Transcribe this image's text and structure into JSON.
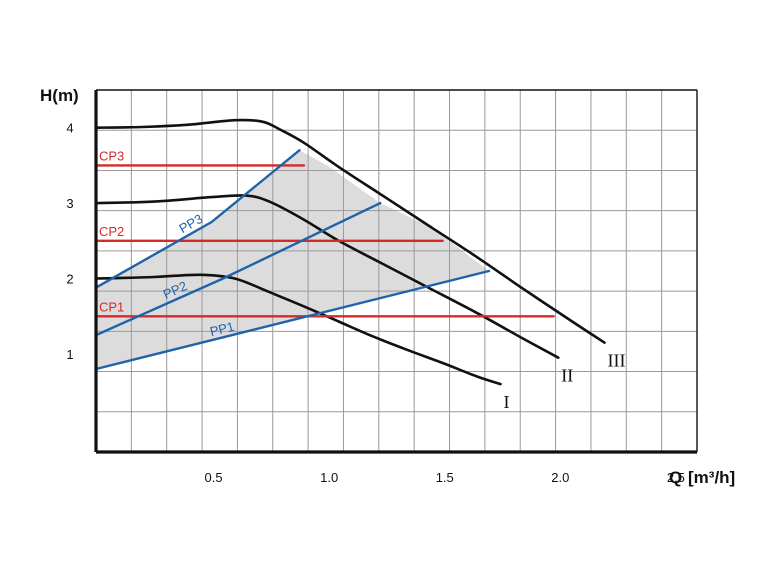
{
  "chart_data": {
    "type": "line",
    "title": "",
    "xlabel": "Q[m³/h]",
    "ylabel": "H(m)",
    "x_axis_symbol": "Q",
    "x_axis_unit": "[m³/h]",
    "xlim": [
      0,
      2.6
    ],
    "ylim": [
      -0.3,
      4.5
    ],
    "x_ticks": [
      0.5,
      1.0,
      1.5,
      2.0,
      2.5
    ],
    "x_tick_labels": [
      "0.5",
      "1.0",
      "1.5",
      "2.0",
      "2.5"
    ],
    "y_ticks": [
      1,
      2,
      3,
      4
    ],
    "y_tick_labels": [
      "1",
      "2",
      "3",
      "4"
    ],
    "grid": true,
    "colors": {
      "max_curve": "#111111",
      "constant_pressure": "#d42a2a",
      "proportional_pressure": "#1f63a8",
      "operating_area": "#dcdcdc"
    },
    "series": [
      {
        "name": "I",
        "kind": "max_curve",
        "x": [
          0.0,
          0.25,
          0.45,
          0.6,
          0.75,
          0.9,
          1.05,
          1.2,
          1.35,
          1.5,
          1.65,
          1.75
        ],
        "y": [
          2.0,
          2.02,
          2.05,
          2.0,
          1.82,
          1.63,
          1.43,
          1.23,
          1.05,
          0.88,
          0.7,
          0.6
        ]
      },
      {
        "name": "II",
        "kind": "max_curve",
        "x": [
          0.0,
          0.25,
          0.5,
          0.65,
          0.75,
          0.9,
          1.05,
          1.25,
          1.45,
          1.65,
          1.85,
          2.0
        ],
        "y": [
          3.0,
          3.02,
          3.08,
          3.1,
          3.02,
          2.78,
          2.5,
          2.18,
          1.86,
          1.54,
          1.2,
          0.95
        ]
      },
      {
        "name": "III",
        "kind": "max_curve",
        "x": [
          0.0,
          0.2,
          0.4,
          0.6,
          0.72,
          0.8,
          0.9,
          1.05,
          1.25,
          1.45,
          1.65,
          1.85,
          2.05,
          2.2
        ],
        "y": [
          4.0,
          4.01,
          4.04,
          4.1,
          4.08,
          3.97,
          3.8,
          3.48,
          3.08,
          2.68,
          2.28,
          1.86,
          1.45,
          1.15
        ]
      },
      {
        "name": "CP1",
        "kind": "constant_pressure",
        "x": [
          0.0,
          1.98
        ],
        "y": [
          1.5,
          1.5
        ]
      },
      {
        "name": "CP2",
        "kind": "constant_pressure",
        "x": [
          0.0,
          1.5
        ],
        "y": [
          2.5,
          2.5
        ]
      },
      {
        "name": "CP3",
        "kind": "constant_pressure",
        "x": [
          0.0,
          0.9
        ],
        "y": [
          3.5,
          3.5
        ]
      },
      {
        "name": "PP1",
        "kind": "proportional_pressure",
        "x": [
          0.0,
          1.7
        ],
        "y": [
          0.8,
          2.1
        ]
      },
      {
        "name": "PP2",
        "kind": "proportional_pressure",
        "x": [
          0.0,
          0.55,
          1.23
        ],
        "y": [
          1.25,
          2.0,
          3.0
        ]
      },
      {
        "name": "PP3",
        "kind": "proportional_pressure",
        "x": [
          0.0,
          0.5,
          0.88
        ],
        "y": [
          1.88,
          2.75,
          3.7
        ]
      }
    ],
    "operating_area": {
      "x": [
        0.0,
        0.0,
        0.5,
        0.88,
        1.0,
        1.23,
        1.45,
        1.7,
        1.0,
        0.0
      ],
      "y": [
        0.8,
        1.88,
        2.75,
        3.7,
        3.5,
        3.0,
        2.68,
        2.1,
        1.55,
        0.8
      ]
    }
  }
}
